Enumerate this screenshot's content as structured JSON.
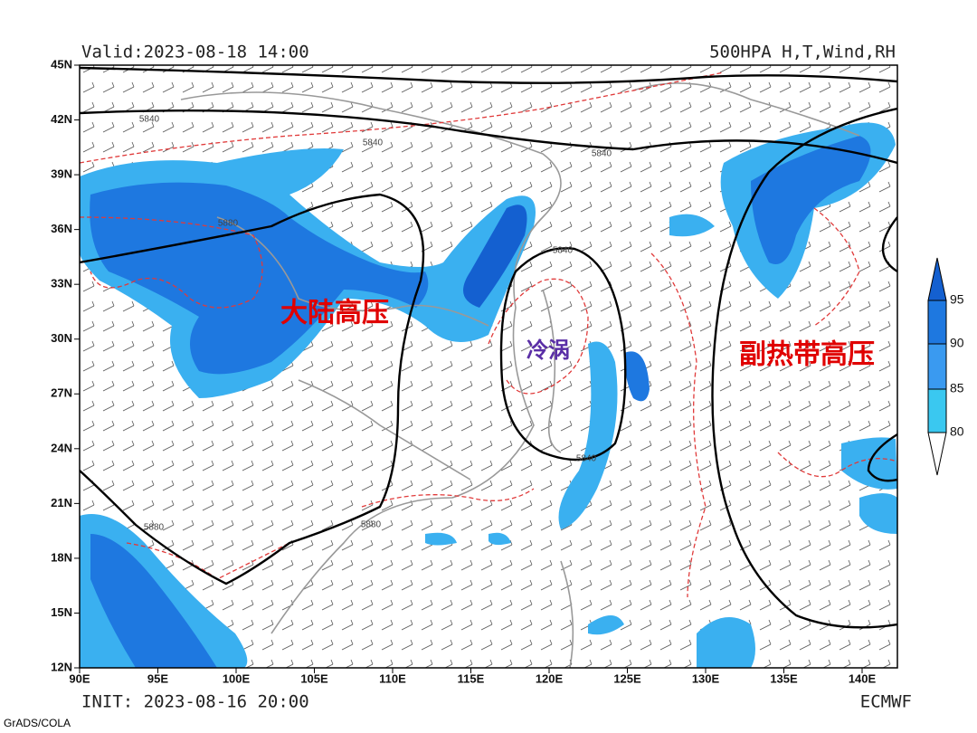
{
  "header": {
    "valid": "Valid:2023-08-18 14:00",
    "product": "500HPA H,T,Wind,RH"
  },
  "footer": {
    "init": "INIT: 2023-08-16 20:00",
    "model": "ECMWF",
    "credit": "GrADS/COLA"
  },
  "axes": {
    "lat_labels": [
      "45N",
      "42N",
      "39N",
      "36N",
      "33N",
      "30N",
      "27N",
      "24N",
      "21N",
      "18N",
      "15N",
      "12N"
    ],
    "lon_labels": [
      "90E",
      "95E",
      "100E",
      "105E",
      "110E",
      "115E",
      "120E",
      "125E",
      "130E",
      "135E",
      "140E"
    ]
  },
  "annotations": {
    "continental_high": "大陆高压",
    "cold_vortex": "冷涡",
    "subtropical_high": "副热带高压"
  },
  "contour_labels": [
    "5840",
    "5840",
    "5840",
    "5880",
    "5840",
    "5840",
    "5880",
    "5880"
  ],
  "colorbar": {
    "labels": [
      "95",
      "90",
      "85",
      "80"
    ]
  }
}
